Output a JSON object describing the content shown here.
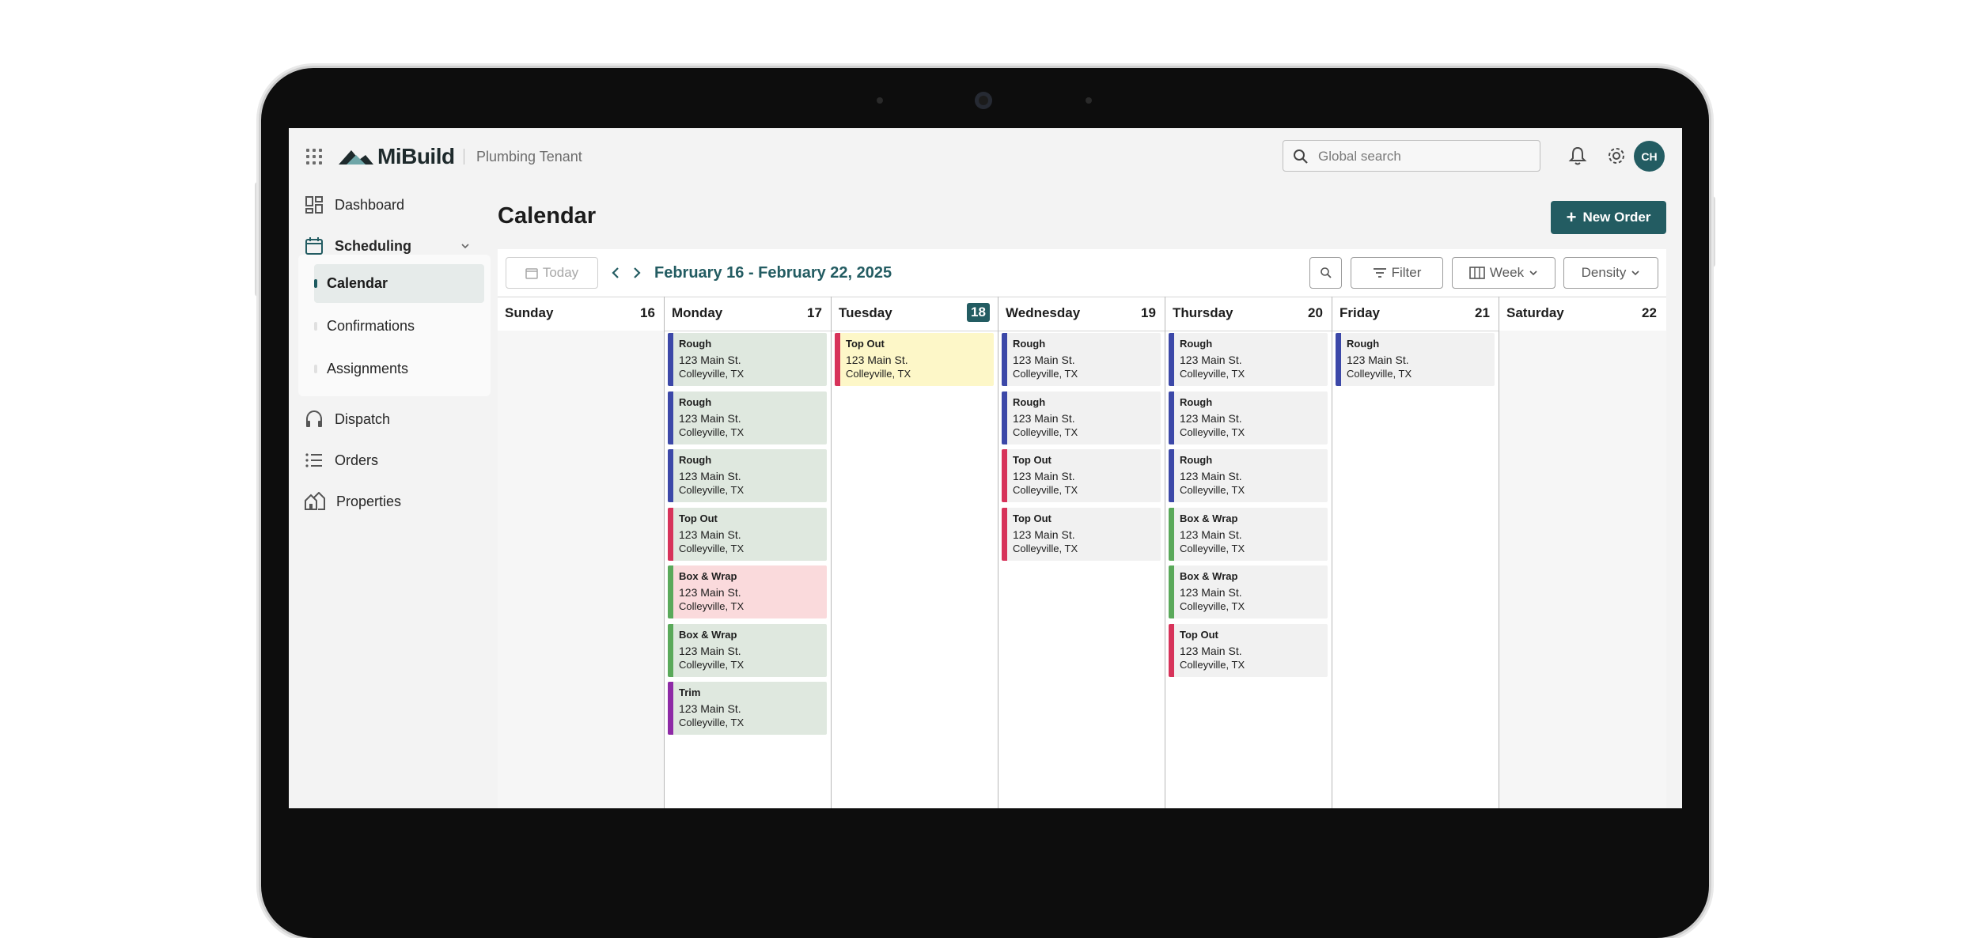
{
  "brand": {
    "name": "MiBuild",
    "tenant": "Plumbing Tenant"
  },
  "header": {
    "search_placeholder": "Global search",
    "avatar_initials": "CH"
  },
  "sidebar": {
    "dashboard": "Dashboard",
    "scheduling": "Scheduling",
    "sub": [
      "Calendar",
      "Confirmations",
      "Assignments"
    ],
    "dispatch": "Dispatch",
    "orders": "Orders",
    "properties": "Properties"
  },
  "page": {
    "title": "Calendar",
    "new_order": "New Order"
  },
  "toolbar": {
    "today": "Today",
    "range": "February 16 - February 22, 2025",
    "filter": "Filter",
    "view": "Week",
    "density": "Density"
  },
  "colors": {
    "rough": "#3c48a8",
    "topout": "#d7335a",
    "boxwrap": "#5aa95a",
    "trim": "#8e2aa6",
    "green_bg": "#dfe8df",
    "gray_bg": "#f1f1f1",
    "yellow_bg": "#fdf7c8",
    "pink_bg": "#fadadc"
  },
  "days": [
    {
      "name": "Sunday",
      "num": "16",
      "events": []
    },
    {
      "name": "Monday",
      "num": "17",
      "events": [
        {
          "title": "Rough",
          "address": "123 Main St.",
          "city": "Colleyville, TX",
          "type": "rough",
          "bg": "green"
        },
        {
          "title": "Rough",
          "address": "123 Main St.",
          "city": "Colleyville, TX",
          "type": "rough",
          "bg": "green"
        },
        {
          "title": "Rough",
          "address": "123 Main St.",
          "city": "Colleyville, TX",
          "type": "rough",
          "bg": "green"
        },
        {
          "title": "Top Out",
          "address": "123 Main St.",
          "city": "Colleyville, TX",
          "type": "topout",
          "bg": "green"
        },
        {
          "title": "Box & Wrap",
          "address": "123 Main St.",
          "city": "Colleyville, TX",
          "type": "boxwrap",
          "bg": "pink"
        },
        {
          "title": "Box & Wrap",
          "address": "123 Main St.",
          "city": "Colleyville, TX",
          "type": "boxwrap",
          "bg": "green"
        },
        {
          "title": "Trim",
          "address": "123 Main St.",
          "city": "Colleyville, TX",
          "type": "trim",
          "bg": "green"
        }
      ]
    },
    {
      "name": "Tuesday",
      "num": "18",
      "today": true,
      "events": [
        {
          "title": "Top Out",
          "address": "123 Main St.",
          "city": "Colleyville, TX",
          "type": "topout",
          "bg": "yellow"
        }
      ]
    },
    {
      "name": "Wednesday",
      "num": "19",
      "events": [
        {
          "title": "Rough",
          "address": "123 Main St.",
          "city": "Colleyville, TX",
          "type": "rough",
          "bg": "gray"
        },
        {
          "title": "Rough",
          "address": "123 Main St.",
          "city": "Colleyville, TX",
          "type": "rough",
          "bg": "gray"
        },
        {
          "title": "Top Out",
          "address": "123 Main St.",
          "city": "Colleyville, TX",
          "type": "topout",
          "bg": "gray"
        },
        {
          "title": "Top Out",
          "address": "123 Main St.",
          "city": "Colleyville, TX",
          "type": "topout",
          "bg": "gray"
        }
      ]
    },
    {
      "name": "Thursday",
      "num": "20",
      "events": [
        {
          "title": "Rough",
          "address": "123 Main St.",
          "city": "Colleyville, TX",
          "type": "rough",
          "bg": "gray"
        },
        {
          "title": "Rough",
          "address": "123 Main St.",
          "city": "Colleyville, TX",
          "type": "rough",
          "bg": "gray"
        },
        {
          "title": "Rough",
          "address": "123 Main St.",
          "city": "Colleyville, TX",
          "type": "rough",
          "bg": "gray"
        },
        {
          "title": "Box & Wrap",
          "address": "123 Main St.",
          "city": "Colleyville, TX",
          "type": "boxwrap",
          "bg": "gray"
        },
        {
          "title": "Box & Wrap",
          "address": "123 Main St.",
          "city": "Colleyville, TX",
          "type": "boxwrap",
          "bg": "gray"
        },
        {
          "title": "Top Out",
          "address": "123 Main St.",
          "city": "Colleyville, TX",
          "type": "topout",
          "bg": "gray"
        }
      ]
    },
    {
      "name": "Friday",
      "num": "21",
      "events": [
        {
          "title": "Rough",
          "address": "123 Main St.",
          "city": "Colleyville, TX",
          "type": "rough",
          "bg": "gray"
        }
      ]
    },
    {
      "name": "Saturday",
      "num": "22",
      "events": []
    }
  ]
}
